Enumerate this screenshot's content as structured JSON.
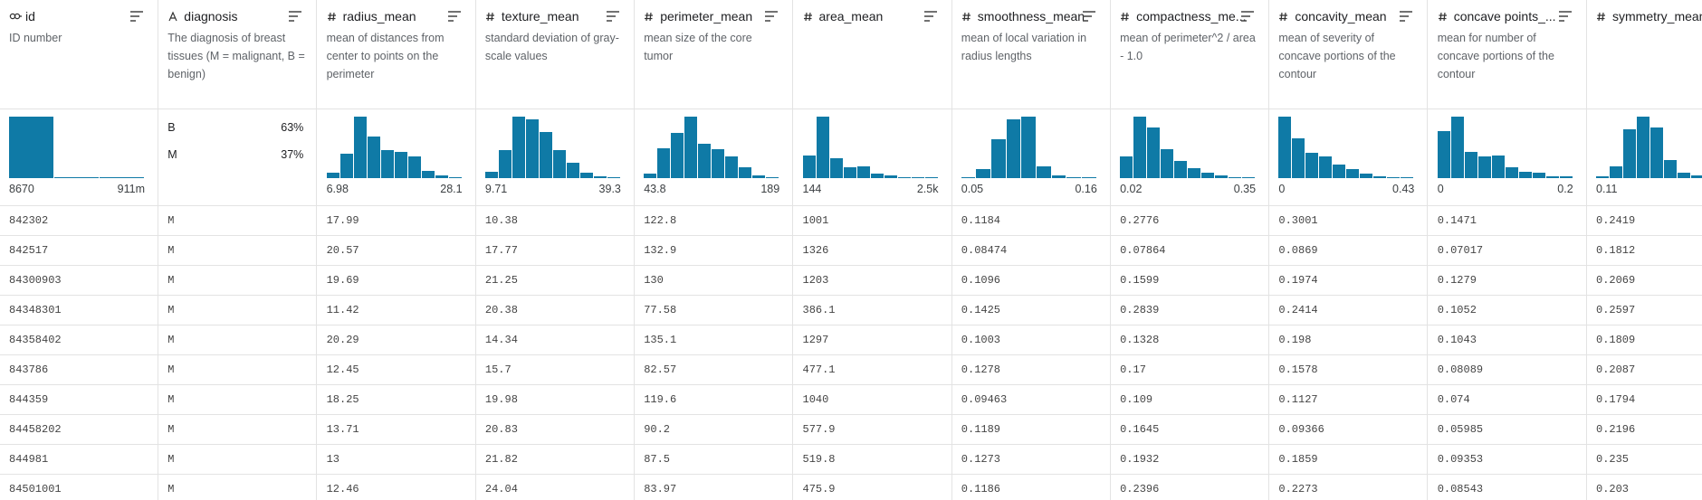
{
  "bar_color": "#0f7aa6",
  "columns": [
    {
      "name": "id",
      "kind": "id",
      "description": "ID number",
      "summary": {
        "type": "histogram",
        "values": [
          100,
          2,
          2
        ],
        "min": "8670",
        "max": "911m"
      }
    },
    {
      "name": "diagnosis",
      "kind": "categorical",
      "description": "The diagnosis of breast tissues (M = malignant, B = benign)",
      "summary": {
        "type": "categories",
        "categories": [
          "B",
          "M"
        ],
        "percents": [
          "63%",
          "37%"
        ]
      }
    },
    {
      "name": "radius_mean",
      "kind": "numeric",
      "description": "mean of distances from center to points on the perimeter",
      "summary": {
        "type": "histogram",
        "values": [
          9,
          39,
          100,
          68,
          46,
          42,
          35,
          12,
          5,
          2
        ],
        "min": "6.98",
        "max": "28.1"
      }
    },
    {
      "name": "texture_mean",
      "kind": "numeric",
      "description": "standard deviation of gray-scale values",
      "summary": {
        "type": "histogram",
        "values": [
          10,
          45,
          100,
          95,
          75,
          45,
          25,
          9,
          3,
          1
        ],
        "min": "9.71",
        "max": "39.3"
      }
    },
    {
      "name": "perimeter_mean",
      "kind": "numeric",
      "description": "mean size of the core tumor",
      "summary": {
        "type": "histogram",
        "values": [
          7,
          49,
          74,
          100,
          56,
          47,
          35,
          18,
          4,
          2
        ],
        "min": "43.8",
        "max": "189"
      }
    },
    {
      "name": "area_mean",
      "kind": "numeric",
      "description": "",
      "summary": {
        "type": "histogram",
        "values": [
          37,
          100,
          33,
          18,
          19,
          7,
          4,
          2,
          1,
          1
        ],
        "min": "144",
        "max": "2.5k"
      }
    },
    {
      "name": "smoothness_mean",
      "kind": "numeric",
      "description": "mean of local variation in radius lengths",
      "summary": {
        "type": "histogram",
        "values": [
          2,
          14,
          63,
          95,
          100,
          19,
          4,
          1,
          1
        ],
        "min": "0.05",
        "max": "0.16"
      }
    },
    {
      "name": "compactness_me...",
      "kind": "numeric",
      "description": "mean of perimeter^2 / area - 1.0",
      "summary": {
        "type": "histogram",
        "values": [
          35,
          100,
          82,
          47,
          28,
          16,
          9,
          4,
          2,
          1
        ],
        "min": "0.02",
        "max": "0.35"
      }
    },
    {
      "name": "concavity_mean",
      "kind": "numeric",
      "description": "mean of severity of concave portions of the contour",
      "summary": {
        "type": "histogram",
        "values": [
          100,
          65,
          41,
          35,
          22,
          15,
          8,
          3,
          2,
          1
        ],
        "min": "0",
        "max": "0.43"
      }
    },
    {
      "name": "concave points_...",
      "kind": "numeric",
      "description": "mean for number of concave portions of the contour",
      "summary": {
        "type": "histogram",
        "values": [
          77,
          100,
          42,
          35,
          37,
          17,
          11,
          9,
          3,
          3
        ],
        "min": "0",
        "max": "0.2"
      }
    },
    {
      "name": "symmetry_mean",
      "kind": "numeric",
      "description": "",
      "summary": {
        "type": "histogram",
        "values": [
          3,
          19,
          79,
          100,
          82,
          30,
          9,
          4,
          2,
          1
        ],
        "min": "0.11"
      }
    }
  ],
  "rows": [
    [
      "842302",
      "M",
      "17.99",
      "10.38",
      "122.8",
      "1001",
      "0.1184",
      "0.2776",
      "0.3001",
      "0.1471",
      "0.2419"
    ],
    [
      "842517",
      "M",
      "20.57",
      "17.77",
      "132.9",
      "1326",
      "0.08474",
      "0.07864",
      "0.0869",
      "0.07017",
      "0.1812"
    ],
    [
      "84300903",
      "M",
      "19.69",
      "21.25",
      "130",
      "1203",
      "0.1096",
      "0.1599",
      "0.1974",
      "0.1279",
      "0.2069"
    ],
    [
      "84348301",
      "M",
      "11.42",
      "20.38",
      "77.58",
      "386.1",
      "0.1425",
      "0.2839",
      "0.2414",
      "0.1052",
      "0.2597"
    ],
    [
      "84358402",
      "M",
      "20.29",
      "14.34",
      "135.1",
      "1297",
      "0.1003",
      "0.1328",
      "0.198",
      "0.1043",
      "0.1809"
    ],
    [
      "843786",
      "M",
      "12.45",
      "15.7",
      "82.57",
      "477.1",
      "0.1278",
      "0.17",
      "0.1578",
      "0.08089",
      "0.2087"
    ],
    [
      "844359",
      "M",
      "18.25",
      "19.98",
      "119.6",
      "1040",
      "0.09463",
      "0.109",
      "0.1127",
      "0.074",
      "0.1794"
    ],
    [
      "84458202",
      "M",
      "13.71",
      "20.83",
      "90.2",
      "577.9",
      "0.1189",
      "0.1645",
      "0.09366",
      "0.05985",
      "0.2196"
    ],
    [
      "844981",
      "M",
      "13",
      "21.82",
      "87.5",
      "519.8",
      "0.1273",
      "0.1932",
      "0.1859",
      "0.09353",
      "0.235"
    ],
    [
      "84501001",
      "M",
      "12.46",
      "24.04",
      "83.97",
      "475.9",
      "0.1186",
      "0.2396",
      "0.2273",
      "0.08543",
      "0.203"
    ]
  ]
}
